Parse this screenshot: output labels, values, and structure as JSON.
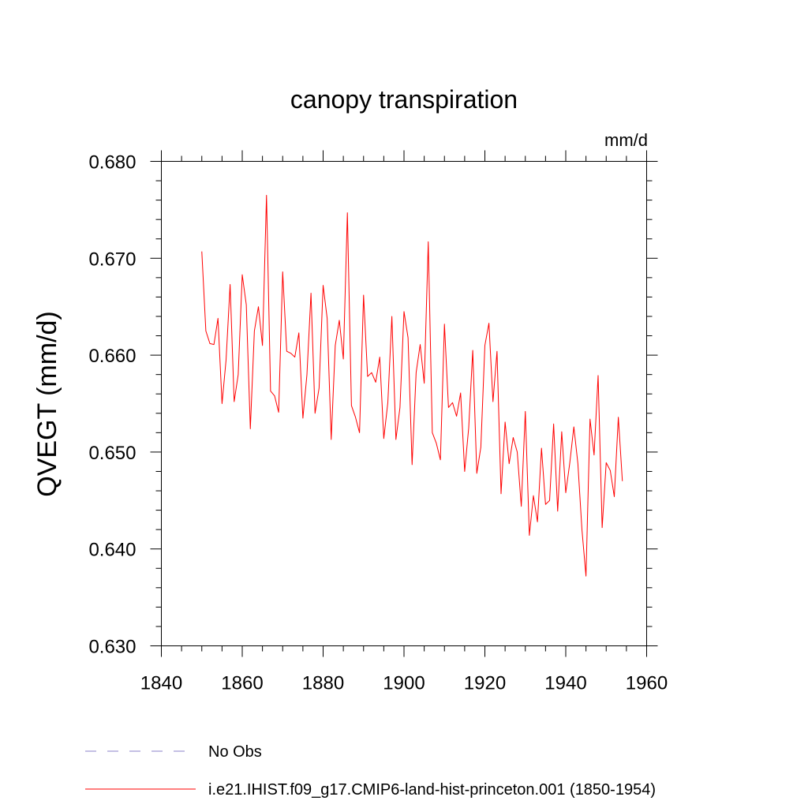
{
  "chart_data": {
    "type": "line",
    "title": "canopy transpiration",
    "units_label": "mm/d",
    "ylabel": "QVEGT  (mm/d)",
    "xlabel": "",
    "xlim": [
      1840,
      1960
    ],
    "ylim": [
      0.63,
      0.68
    ],
    "x_ticks": [
      1840,
      1860,
      1880,
      1900,
      1920,
      1940,
      1960
    ],
    "x_tick_labels": [
      "1840",
      "1860",
      "1880",
      "1900",
      "1920",
      "1940",
      "1960"
    ],
    "y_ticks": [
      0.63,
      0.64,
      0.65,
      0.66,
      0.67,
      0.68
    ],
    "y_tick_labels": [
      "0.630",
      "0.640",
      "0.650",
      "0.660",
      "0.670",
      "0.680"
    ],
    "grid": false,
    "legend_position": "bottom-left",
    "legend": [
      {
        "label": "No Obs",
        "color": "#8a82c8",
        "style": "dashed"
      },
      {
        "label": "i.e21.IHIST.f09_g17.CMIP6-land-hist-princeton.001 (1850-1954)",
        "color": "#ff0000",
        "style": "solid"
      }
    ],
    "series": [
      {
        "name": "i.e21.IHIST.f09_g17.CMIP6-land-hist-princeton.001 (1850-1954)",
        "color": "#ff0000",
        "x": [
          1850,
          1851,
          1852,
          1853,
          1854,
          1855,
          1856,
          1857,
          1858,
          1859,
          1860,
          1861,
          1862,
          1863,
          1864,
          1865,
          1866,
          1867,
          1868,
          1869,
          1870,
          1871,
          1872,
          1873,
          1874,
          1875,
          1876,
          1877,
          1878,
          1879,
          1880,
          1881,
          1882,
          1883,
          1884,
          1885,
          1886,
          1887,
          1888,
          1889,
          1890,
          1891,
          1892,
          1893,
          1894,
          1895,
          1896,
          1897,
          1898,
          1899,
          1900,
          1901,
          1902,
          1903,
          1904,
          1905,
          1906,
          1907,
          1908,
          1909,
          1910,
          1911,
          1912,
          1913,
          1914,
          1915,
          1916,
          1917,
          1918,
          1919,
          1920,
          1921,
          1922,
          1923,
          1924,
          1925,
          1926,
          1927,
          1928,
          1929,
          1930,
          1931,
          1932,
          1933,
          1934,
          1935,
          1936,
          1937,
          1938,
          1939,
          1940,
          1941,
          1942,
          1943,
          1944,
          1945,
          1946,
          1947,
          1948,
          1949,
          1950,
          1951,
          1952,
          1953,
          1954
        ],
        "y": [
          0.6707,
          0.6625,
          0.6612,
          0.6611,
          0.6638,
          0.655,
          0.6595,
          0.6673,
          0.6552,
          0.658,
          0.6683,
          0.6652,
          0.6524,
          0.6625,
          0.665,
          0.661,
          0.6765,
          0.6563,
          0.6558,
          0.6541,
          0.6686,
          0.6604,
          0.6602,
          0.6598,
          0.6623,
          0.6535,
          0.658,
          0.6664,
          0.654,
          0.6566,
          0.6672,
          0.6638,
          0.6513,
          0.661,
          0.6636,
          0.6596,
          0.6747,
          0.6548,
          0.6536,
          0.652,
          0.6662,
          0.6578,
          0.6582,
          0.6572,
          0.6598,
          0.6514,
          0.6551,
          0.664,
          0.6513,
          0.6546,
          0.6645,
          0.6618,
          0.6487,
          0.6582,
          0.6611,
          0.6571,
          0.6717,
          0.652,
          0.6509,
          0.6492,
          0.6632,
          0.6546,
          0.6551,
          0.6537,
          0.6561,
          0.648,
          0.6525,
          0.6605,
          0.6478,
          0.6505,
          0.661,
          0.6633,
          0.6552,
          0.6604,
          0.6457,
          0.6531,
          0.6488,
          0.6515,
          0.65,
          0.6444,
          0.6542,
          0.6414,
          0.6455,
          0.6428,
          0.6504,
          0.6446,
          0.645,
          0.6529,
          0.6439,
          0.6521,
          0.6458,
          0.6489,
          0.6526,
          0.6488,
          0.642,
          0.6372,
          0.6534,
          0.6497,
          0.6579,
          0.6422,
          0.6489,
          0.6481,
          0.6454,
          0.6536,
          0.647
        ]
      }
    ]
  }
}
